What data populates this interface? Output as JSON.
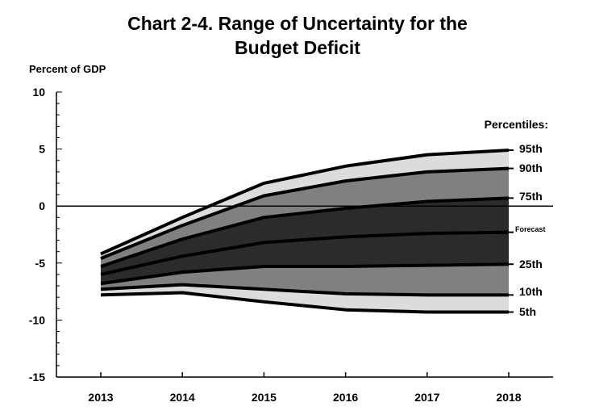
{
  "chart_data": {
    "type": "area",
    "title_line1": "Chart 2-4. Range of Uncertainty for the",
    "title_line2": "Budget Deficit",
    "ylabel": "Percent of GDP",
    "legend_title": "Percentiles:",
    "x": [
      "2013",
      "2014",
      "2015",
      "2016",
      "2017",
      "2018"
    ],
    "ylim": [
      -15,
      10
    ],
    "yticks": [
      -15,
      -10,
      -5,
      0,
      5,
      10
    ],
    "grid": false,
    "series": [
      {
        "name": "95th",
        "values": [
          -4.2,
          -1.0,
          2.0,
          3.5,
          4.5,
          4.9
        ]
      },
      {
        "name": "90th",
        "values": [
          -4.6,
          -1.7,
          0.9,
          2.2,
          3.0,
          3.3
        ]
      },
      {
        "name": "75th",
        "values": [
          -5.3,
          -2.9,
          -1.0,
          -0.2,
          0.4,
          0.7
        ]
      },
      {
        "name": "Forecast",
        "values": [
          -6.0,
          -4.4,
          -3.2,
          -2.7,
          -2.4,
          -2.3
        ]
      },
      {
        "name": "25th",
        "values": [
          -6.8,
          -5.8,
          -5.3,
          -5.3,
          -5.2,
          -5.1
        ]
      },
      {
        "name": "10th",
        "values": [
          -7.3,
          -6.9,
          -7.3,
          -7.7,
          -7.8,
          -7.8
        ]
      },
      {
        "name": "5th",
        "values": [
          -7.8,
          -7.6,
          -8.4,
          -9.1,
          -9.3,
          -9.3
        ]
      }
    ],
    "band_colors": [
      "#dcdcdc",
      "#808080",
      "#2b2b2b",
      "#2b2b2b",
      "#808080",
      "#dcdcdc"
    ]
  }
}
